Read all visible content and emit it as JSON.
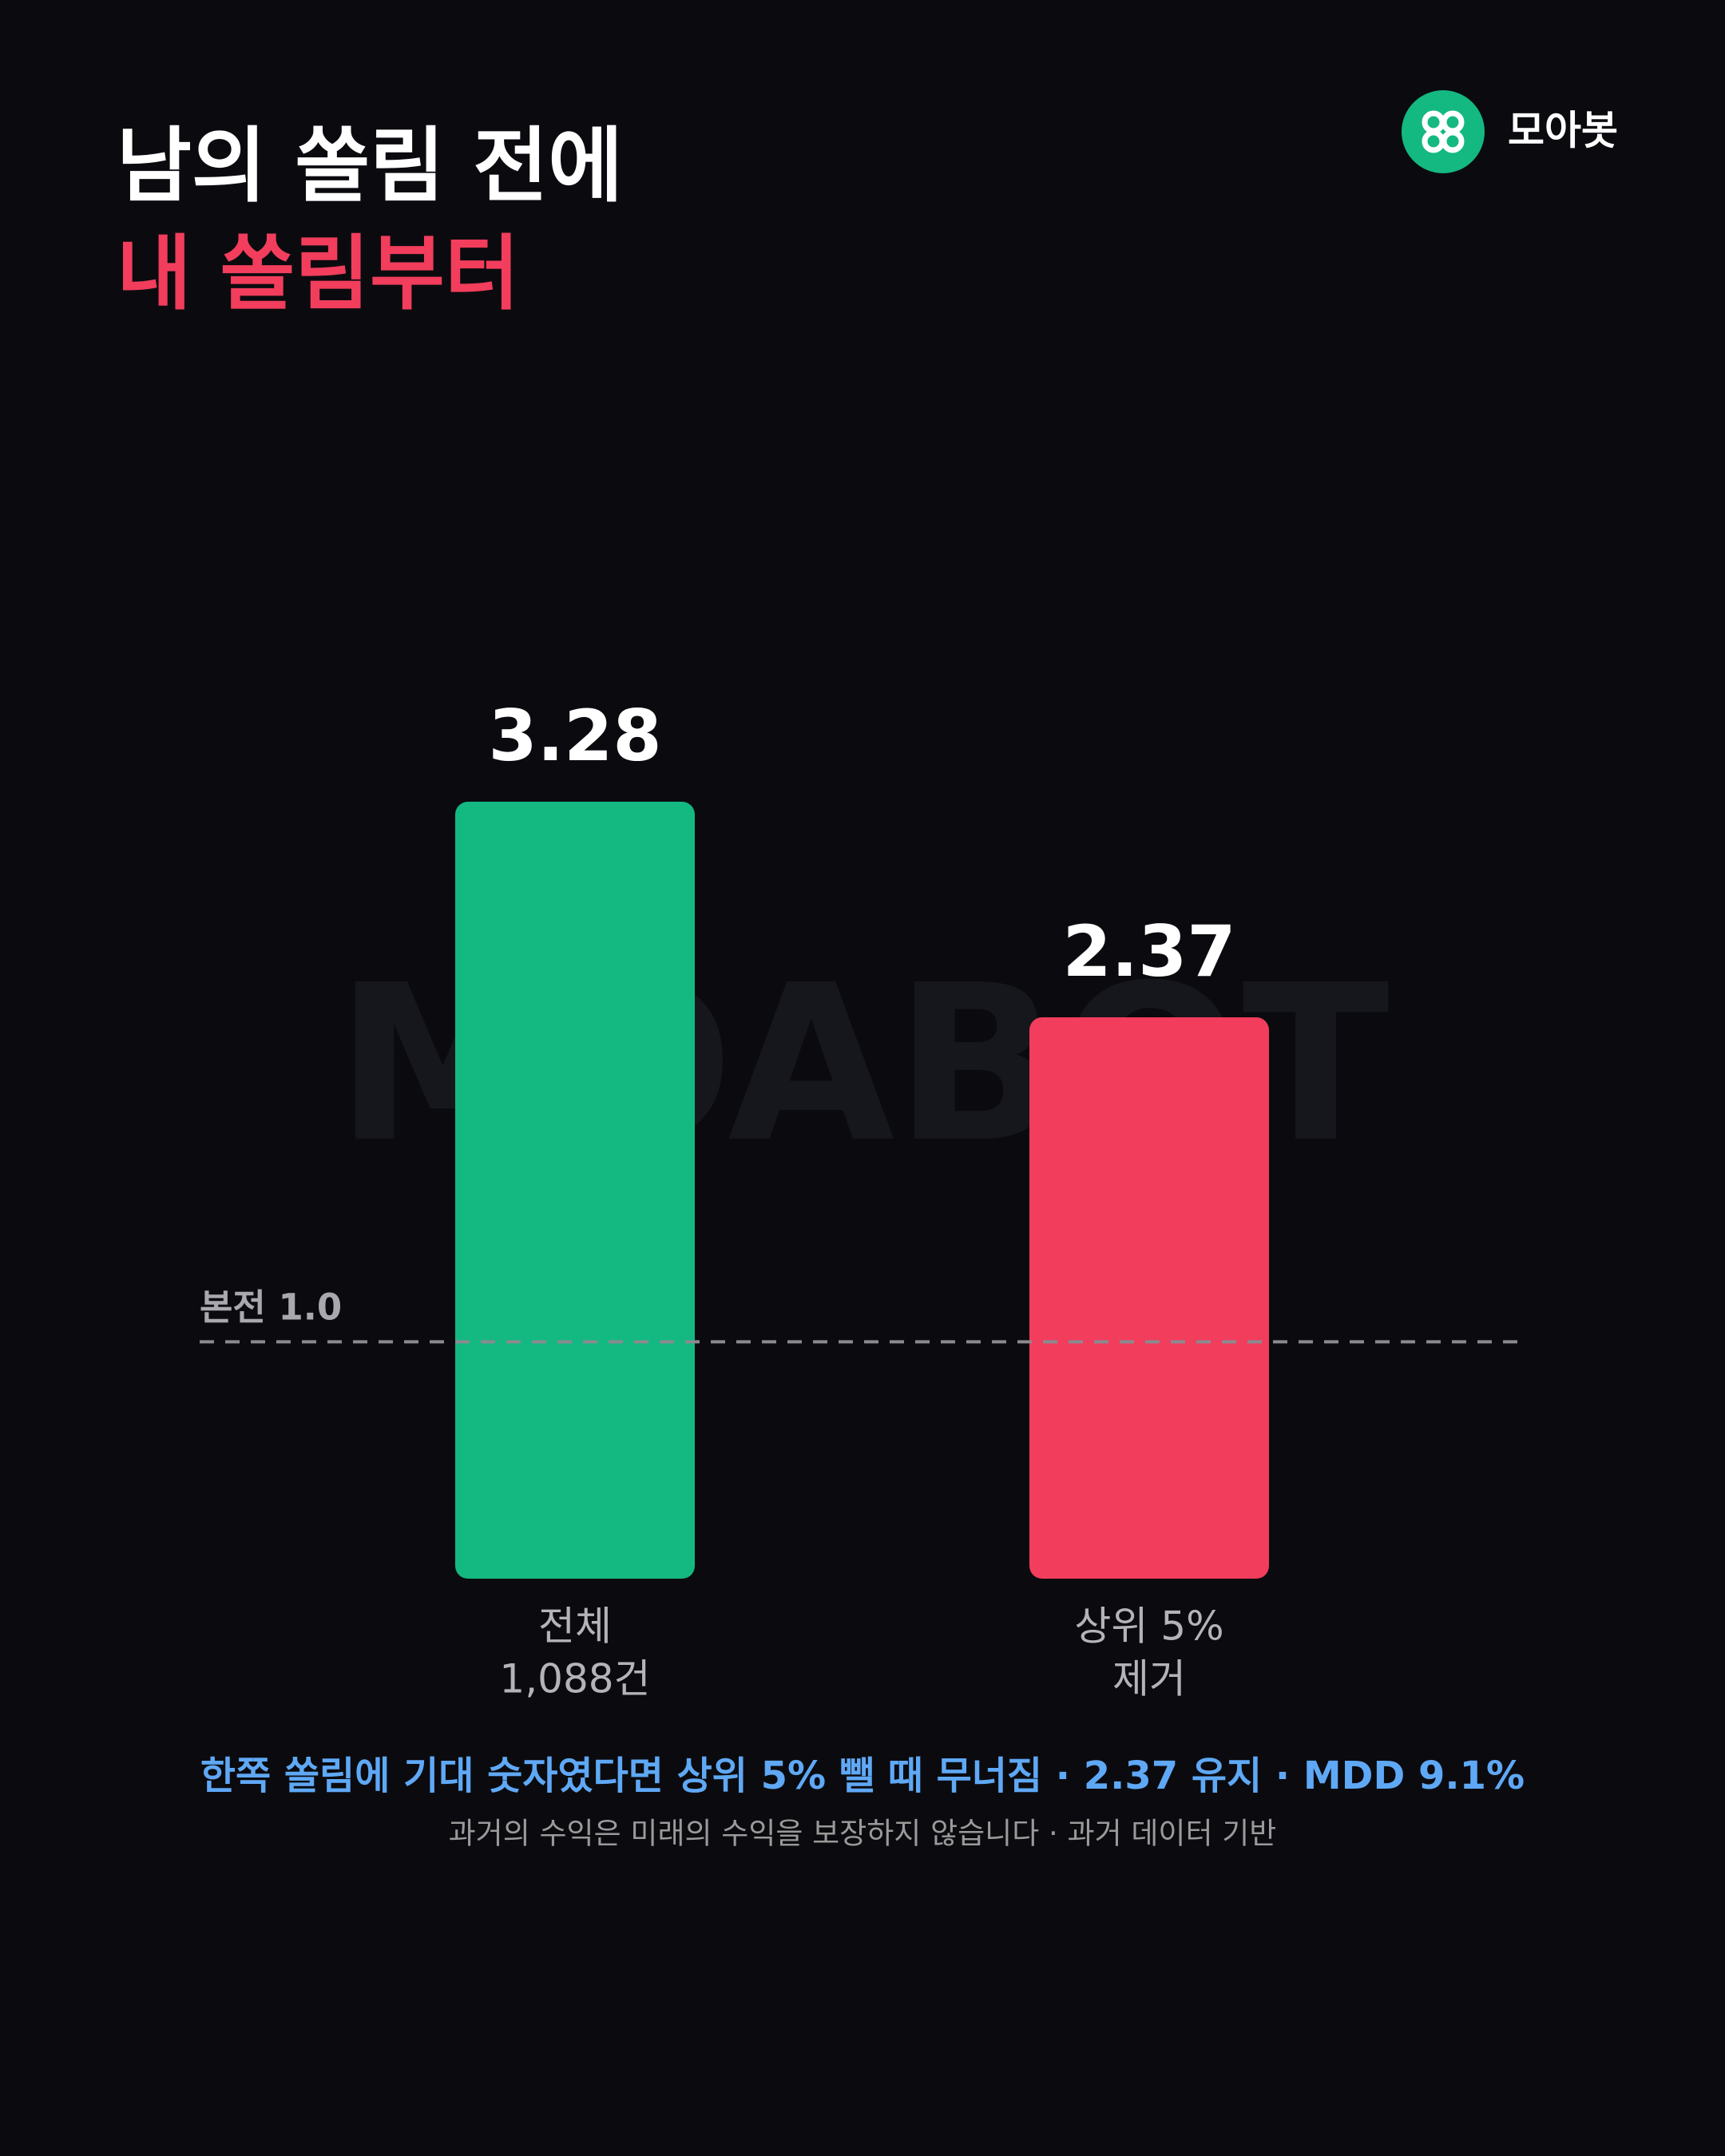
{
  "brand": "모아봇",
  "chart_data": {
    "type": "bar",
    "title_lines": [
      "남의 쏠림 전에",
      "내 쏠림부터"
    ],
    "watermark": "MOABOT",
    "categories": [
      [
        "전체",
        "1,088건"
      ],
      [
        "상위 5%",
        "제거"
      ]
    ],
    "values": [
      3.28,
      2.37
    ],
    "colors": [
      "#13b981",
      "#f23d5c"
    ],
    "ylim": [
      0,
      3.28
    ],
    "reference_line": {
      "value": 1,
      "label": "본전 1.0"
    },
    "highlight": "한쪽 쏠림에 기대 숫자였다면 상위 5% 뺄 때 무너짐 · 2.37 유지 · MDD 9.1%",
    "disclaimer": "과거의 수익은 미래의 수익을 보장하지 않습니다 · 과거 데이터 기반"
  }
}
